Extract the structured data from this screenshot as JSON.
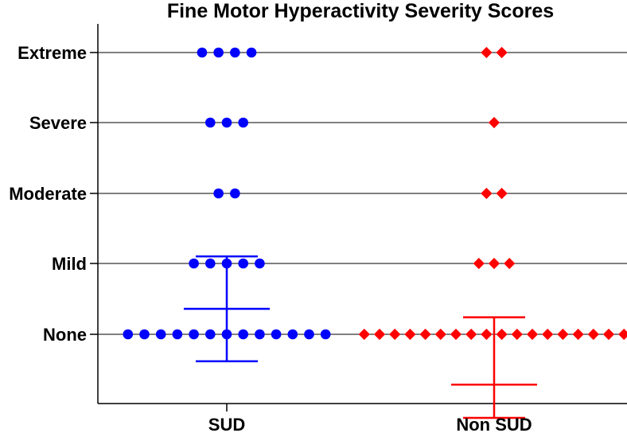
{
  "chart_data": {
    "type": "scatter",
    "title": "Fine Motor Hyperactivity Severity Scores",
    "xlabel": "",
    "ylabel": "",
    "categories": [
      "SUD",
      "Non SUD"
    ],
    "y_ticks": [
      "None",
      "Mild",
      "Moderate",
      "Severe",
      "Extreme"
    ],
    "ylim": [
      -1,
      4.5
    ],
    "grid": true,
    "series": [
      {
        "category": "SUD",
        "marker": "circle",
        "color": "#0000ff",
        "counts_per_level": [
          13,
          5,
          2,
          3,
          4
        ],
        "mean": 0.36,
        "error_bar": [
          -0.38,
          1.1
        ]
      },
      {
        "category": "Non SUD",
        "marker": "diamond",
        "color": "#ff0000",
        "counts_per_level": [
          18,
          3,
          2,
          1,
          2
        ],
        "mean": -0.71,
        "error_bar": [
          -1.18,
          0.24
        ]
      }
    ]
  }
}
